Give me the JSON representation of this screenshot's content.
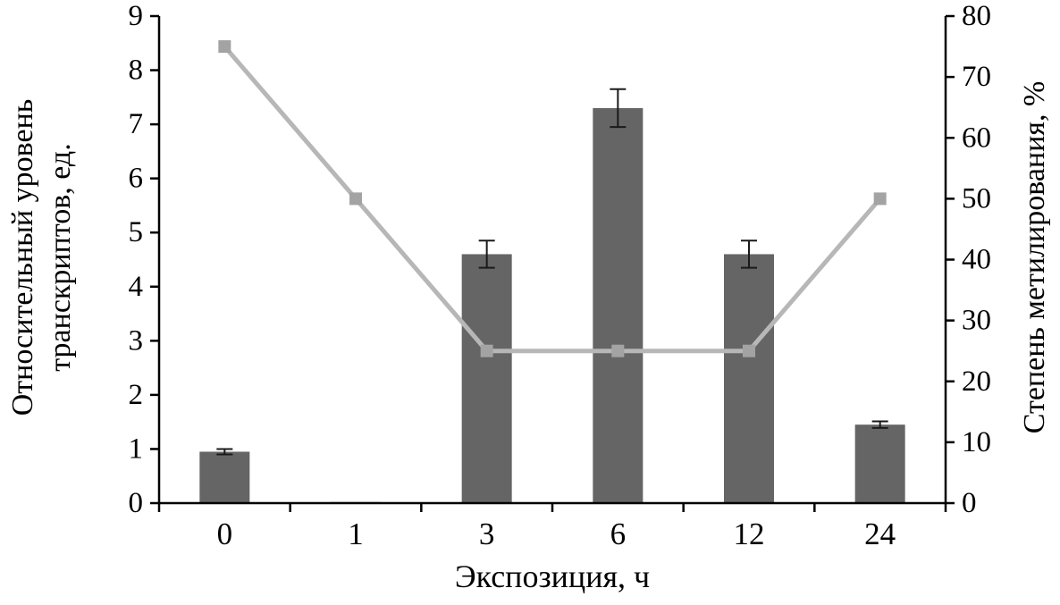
{
  "chart_data": {
    "type": "combo",
    "title": "",
    "categories": [
      "0",
      "1",
      "3",
      "6",
      "12",
      "24"
    ],
    "series": [
      {
        "name": "Относительный уровень транскриптов",
        "type": "bar",
        "axis": "left",
        "values": [
          0.95,
          0.02,
          4.6,
          7.3,
          4.6,
          1.45
        ],
        "errors": [
          0.05,
          0,
          0.25,
          0.35,
          0.25,
          0.06
        ],
        "color": "#656565",
        "error_color": "#1a1a1a"
      },
      {
        "name": "Степень метилирования",
        "type": "line",
        "axis": "right",
        "values": [
          75,
          50,
          25,
          25,
          25,
          50
        ],
        "color": "#b7b7b7",
        "marker": "square",
        "marker_color": "#a3a3a3"
      }
    ],
    "xlabel": "Экспозиция, ч",
    "ylabel_left_line1": "Относительный уровень",
    "ylabel_left_line2": "транскриптов, ед.",
    "ylabel_right": "Степень метилирования, %",
    "left_axis": {
      "min": 0,
      "max": 9,
      "step": 1,
      "ticks": [
        0,
        1,
        2,
        3,
        4,
        5,
        6,
        7,
        8,
        9
      ]
    },
    "right_axis": {
      "min": 0,
      "max": 80,
      "step": 10,
      "ticks": [
        0,
        10,
        20,
        30,
        40,
        50,
        60,
        70,
        80
      ]
    },
    "grid": false,
    "legend": "none"
  }
}
